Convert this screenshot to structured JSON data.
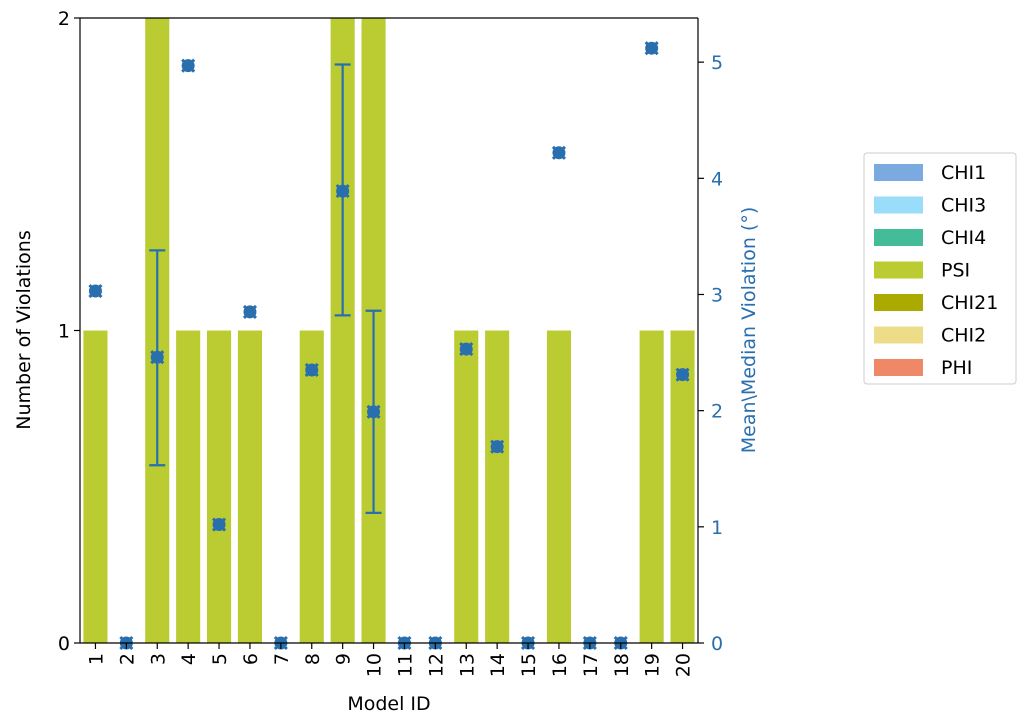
{
  "chart_data": {
    "type": "bar",
    "title": "",
    "xlabel": "Model ID",
    "ylabel": "Number of Violations",
    "ylabel_right": "Mean\\Median Violation (°)",
    "categories": [
      "1",
      "2",
      "3",
      "4",
      "5",
      "6",
      "7",
      "8",
      "9",
      "10",
      "11",
      "12",
      "13",
      "14",
      "15",
      "16",
      "17",
      "18",
      "19",
      "20"
    ],
    "ylim": [
      0,
      2
    ],
    "yticks": [
      "0",
      "1",
      "2"
    ],
    "ylim_right": [
      0,
      5.38
    ],
    "yticks_right": [
      "0",
      "1",
      "2",
      "3",
      "4",
      "5"
    ],
    "series": [
      {
        "name": "CHI1",
        "color": "#7aaadf",
        "values": [
          0,
          0,
          0,
          0,
          0,
          0,
          0,
          0,
          0,
          0,
          0,
          0,
          0,
          0,
          0,
          0,
          0,
          0,
          0,
          0
        ]
      },
      {
        "name": "CHI3",
        "color": "#99ddfa",
        "values": [
          0,
          0,
          0,
          0,
          0,
          0,
          0,
          0,
          0,
          0,
          0,
          0,
          0,
          0,
          0,
          0,
          0,
          0,
          0,
          0
        ]
      },
      {
        "name": "CHI4",
        "color": "#44bb99",
        "values": [
          0,
          0,
          0,
          0,
          0,
          0,
          0,
          0,
          0,
          0,
          0,
          0,
          0,
          0,
          0,
          0,
          0,
          0,
          0,
          0
        ]
      },
      {
        "name": "PSI",
        "color": "#bbcc33",
        "values": [
          1,
          0,
          2,
          1,
          1,
          1,
          0,
          1,
          2,
          2,
          0,
          0,
          1,
          1,
          0,
          1,
          0,
          0,
          1,
          1
        ]
      },
      {
        "name": "CHI21",
        "color": "#aaaa00",
        "values": [
          0,
          0,
          0,
          0,
          0,
          0,
          0,
          0,
          0,
          0,
          0,
          0,
          0,
          0,
          0,
          0,
          0,
          0,
          0,
          0
        ]
      },
      {
        "name": "CHI2",
        "color": "#eedd88",
        "values": [
          0,
          0,
          0,
          0,
          0,
          0,
          0,
          0,
          0,
          0,
          0,
          0,
          0,
          0,
          0,
          0,
          0,
          0,
          0,
          0
        ]
      },
      {
        "name": "PHI",
        "color": "#ee8866",
        "values": [
          0,
          0,
          0,
          0,
          0,
          0,
          0,
          0,
          0,
          0,
          0,
          0,
          0,
          0,
          0,
          0,
          0,
          0,
          0,
          0
        ]
      }
    ],
    "mean_violation": {
      "color": "#2a6fad",
      "values": [
        3.03,
        0,
        2.46,
        4.97,
        1.02,
        2.85,
        0,
        2.35,
        3.89,
        1.99,
        0,
        0,
        2.53,
        1.69,
        0,
        4.22,
        0,
        0,
        5.12,
        2.31
      ],
      "error_low": [
        null,
        null,
        1.53,
        null,
        null,
        null,
        null,
        null,
        2.82,
        1.12,
        null,
        null,
        null,
        null,
        null,
        null,
        null,
        null,
        null,
        null
      ],
      "error_high": [
        null,
        null,
        3.38,
        null,
        null,
        null,
        null,
        null,
        4.98,
        2.86,
        null,
        null,
        null,
        null,
        null,
        null,
        null,
        null,
        null,
        null
      ]
    },
    "legend_position": "center-right",
    "grid": false
  }
}
